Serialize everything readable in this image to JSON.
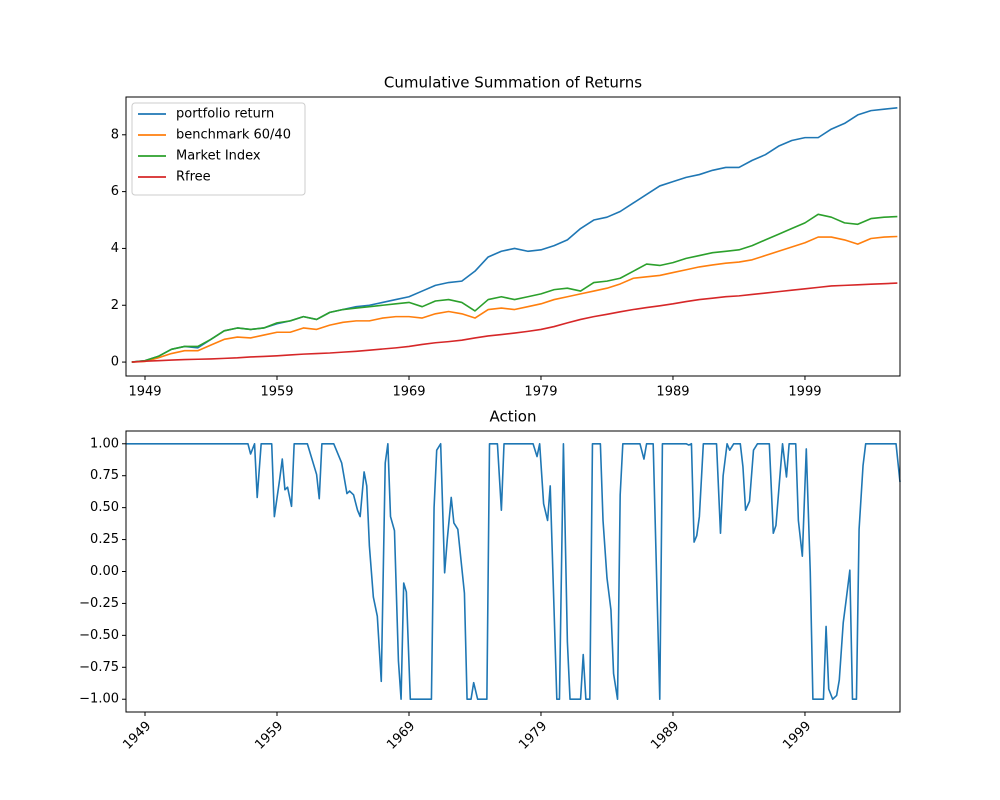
{
  "chart_data": [
    {
      "type": "line",
      "title": "Cumulative Summation of Returns",
      "x": [
        1948,
        1949,
        1950,
        1951,
        1952,
        1953,
        1954,
        1955,
        1956,
        1957,
        1958,
        1959,
        1960,
        1961,
        1962,
        1963,
        1964,
        1965,
        1966,
        1967,
        1968,
        1969,
        1970,
        1971,
        1972,
        1973,
        1974,
        1975,
        1976,
        1977,
        1978,
        1979,
        1980,
        1981,
        1982,
        1983,
        1984,
        1985,
        1986,
        1987,
        1988,
        1989,
        1990,
        1991,
        1992,
        1993,
        1994,
        1995,
        1996,
        1997,
        1998,
        1999,
        2000,
        2001,
        2002,
        2003,
        2004,
        2005,
        2006
      ],
      "series": [
        {
          "name": "portfolio return",
          "color": "#1f77b4",
          "values": [
            0,
            0.05,
            0.2,
            0.45,
            0.55,
            0.5,
            0.8,
            1.1,
            1.2,
            1.15,
            1.2,
            1.35,
            1.45,
            1.6,
            1.5,
            1.75,
            1.85,
            1.95,
            2.0,
            2.1,
            2.2,
            2.3,
            2.5,
            2.7,
            2.8,
            2.85,
            3.2,
            3.7,
            3.9,
            4.0,
            3.9,
            3.95,
            4.1,
            4.3,
            4.7,
            5.0,
            5.1,
            5.3,
            5.6,
            5.9,
            6.2,
            6.35,
            6.5,
            6.6,
            6.75,
            6.85,
            6.85,
            7.1,
            7.3,
            7.6,
            7.8,
            7.9,
            7.9,
            8.2,
            8.4,
            8.7,
            8.85,
            8.9,
            8.95
          ]
        },
        {
          "name": "benchmark 60/40",
          "color": "#ff7f0e",
          "values": [
            0,
            0.02,
            0.15,
            0.3,
            0.4,
            0.4,
            0.6,
            0.8,
            0.88,
            0.85,
            0.95,
            1.05,
            1.05,
            1.2,
            1.15,
            1.3,
            1.4,
            1.45,
            1.45,
            1.55,
            1.6,
            1.6,
            1.55,
            1.7,
            1.78,
            1.7,
            1.55,
            1.85,
            1.9,
            1.85,
            1.95,
            2.05,
            2.2,
            2.3,
            2.4,
            2.5,
            2.6,
            2.75,
            2.95,
            3.0,
            3.05,
            3.15,
            3.25,
            3.35,
            3.42,
            3.48,
            3.52,
            3.6,
            3.75,
            3.9,
            4.05,
            4.2,
            4.4,
            4.4,
            4.3,
            4.15,
            4.35,
            4.4,
            4.42
          ]
        },
        {
          "name": "Market Index",
          "color": "#2ca02c",
          "values": [
            0,
            0.05,
            0.2,
            0.45,
            0.55,
            0.55,
            0.8,
            1.1,
            1.2,
            1.15,
            1.2,
            1.38,
            1.45,
            1.6,
            1.5,
            1.75,
            1.85,
            1.9,
            1.95,
            2.0,
            2.05,
            2.1,
            1.95,
            2.15,
            2.2,
            2.1,
            1.8,
            2.2,
            2.3,
            2.2,
            2.3,
            2.4,
            2.55,
            2.6,
            2.5,
            2.8,
            2.85,
            2.95,
            3.2,
            3.45,
            3.4,
            3.5,
            3.65,
            3.75,
            3.85,
            3.9,
            3.95,
            4.1,
            4.3,
            4.5,
            4.7,
            4.9,
            5.2,
            5.1,
            4.9,
            4.85,
            5.05,
            5.1,
            5.12
          ]
        },
        {
          "name": "Rfree",
          "color": "#d62728",
          "values": [
            0,
            0.03,
            0.05,
            0.07,
            0.09,
            0.1,
            0.11,
            0.13,
            0.15,
            0.18,
            0.2,
            0.22,
            0.25,
            0.28,
            0.3,
            0.32,
            0.35,
            0.38,
            0.42,
            0.46,
            0.5,
            0.55,
            0.62,
            0.68,
            0.72,
            0.77,
            0.85,
            0.92,
            0.97,
            1.02,
            1.08,
            1.15,
            1.25,
            1.38,
            1.5,
            1.6,
            1.68,
            1.77,
            1.85,
            1.92,
            1.98,
            2.05,
            2.13,
            2.2,
            2.25,
            2.3,
            2.33,
            2.38,
            2.43,
            2.48,
            2.53,
            2.58,
            2.63,
            2.68,
            2.7,
            2.72,
            2.74,
            2.76,
            2.78
          ]
        }
      ],
      "xlim": [
        1947.56,
        2006.2
      ],
      "xticks": [
        1949,
        1959,
        1969,
        1979,
        1989,
        1999
      ],
      "ylim": [
        -0.49,
        9.33
      ],
      "yticks": [
        0,
        2,
        4,
        6,
        8
      ],
      "legend": "upper left"
    },
    {
      "type": "line",
      "title": "Action",
      "color": "#1f77b4",
      "xtick_rotation": 45,
      "x": [
        1947.6,
        1956.8,
        1957.0,
        1957.3,
        1957.5,
        1957.8,
        1958.6,
        1958.8,
        1959.2,
        1959.4,
        1959.6,
        1959.8,
        1960.1,
        1960.3,
        1961.3,
        1962.0,
        1962.2,
        1962.4,
        1963.3,
        1963.9,
        1964.3,
        1964.5,
        1964.8,
        1965.1,
        1965.3,
        1965.6,
        1965.8,
        1966.0,
        1966.3,
        1966.6,
        1966.9,
        1967.2,
        1967.4,
        1967.6,
        1967.9,
        1968.2,
        1968.4,
        1968.6,
        1968.8,
        1969.1,
        1970.7,
        1970.9,
        1971.1,
        1971.4,
        1971.7,
        1971.9,
        1972.2,
        1972.4,
        1972.7,
        1973.0,
        1973.2,
        1973.4,
        1973.7,
        1973.9,
        1974.2,
        1974.9,
        1975.1,
        1975.7,
        1976.0,
        1976.2,
        1978.4,
        1978.7,
        1978.9,
        1979.2,
        1979.5,
        1979.7,
        1979.9,
        1980.2,
        1980.4,
        1980.7,
        1981.0,
        1981.2,
        1982.0,
        1982.2,
        1982.4,
        1982.7,
        1982.9,
        1983.5,
        1983.7,
        1984.0,
        1984.3,
        1984.5,
        1984.8,
        1985.0,
        1985.2,
        1986.5,
        1986.8,
        1987.0,
        1987.5,
        1987.7,
        1988.0,
        1988.2,
        1990.0,
        1990.2,
        1990.4,
        1990.6,
        1990.8,
        1991.0,
        1991.3,
        1992.3,
        1992.6,
        1992.8,
        1993.1,
        1993.3,
        1993.6,
        1994.1,
        1994.3,
        1994.5,
        1994.8,
        1995.1,
        1995.4,
        1996.3,
        1996.6,
        1996.8,
        1997.3,
        1997.6,
        1997.8,
        1998.3,
        1998.5,
        1998.8,
        1999.1,
        1999.4,
        1999.6,
        2000.4,
        2000.6,
        2000.8,
        2001.1,
        2001.4,
        2001.6,
        2001.9,
        2002.1,
        2002.4,
        2002.6,
        2002.9,
        2003.1,
        2003.4,
        2003.6,
        2005.9,
        2006.2
      ],
      "values": [
        1,
        1,
        0.92,
        1,
        0.58,
        1,
        1,
        0.43,
        0.72,
        0.88,
        0.64,
        0.66,
        0.51,
        1,
        1,
        0.76,
        0.57,
        1,
        1,
        0.85,
        0.61,
        0.63,
        0.6,
        0.48,
        0.43,
        0.78,
        0.67,
        0.2,
        -0.2,
        -0.35,
        -0.86,
        0.85,
        1,
        0.43,
        0.32,
        -0.7,
        -1,
        -0.09,
        -0.16,
        -1,
        -1,
        0.5,
        0.95,
        1,
        -0.01,
        0.25,
        0.58,
        0.38,
        0.33,
        0.03,
        -0.17,
        -1,
        -1,
        -0.87,
        -1,
        -1,
        1,
        1,
        0.48,
        1,
        1,
        0.9,
        1,
        0.53,
        0.4,
        0.67,
        0,
        -1,
        -1,
        1,
        -0.55,
        -1,
        -1,
        -0.65,
        -1,
        -1,
        1,
        1,
        0.4,
        -0.05,
        -0.3,
        -0.8,
        -1,
        0.6,
        1,
        1,
        0.88,
        1,
        1,
        0.2,
        -1,
        1,
        1,
        0.99,
        1,
        0.23,
        0.28,
        0.43,
        1,
        1,
        0.3,
        0.75,
        1,
        0.95,
        1,
        1,
        0.82,
        0.48,
        0.55,
        0.95,
        1,
        1,
        0.3,
        0.36,
        1,
        0.74,
        1,
        1,
        0.4,
        0.12,
        0.96,
        0,
        -1,
        -1,
        -0.43,
        -0.92,
        -1,
        -0.97,
        -0.85,
        -0.4,
        -0.24,
        0.01,
        -1,
        -1,
        0.33,
        0.83,
        1,
        1,
        0.7
      ],
      "xlim": [
        1947.56,
        2006.2
      ],
      "xticks": [
        1949,
        1959,
        1969,
        1979,
        1989,
        1999
      ],
      "ylim": [
        -1.1,
        1.1
      ],
      "yticks": [
        {
          "value": -1,
          "label": "−1.00"
        },
        {
          "value": -0.75,
          "label": "−0.75"
        },
        {
          "value": -0.5,
          "label": "−0.50"
        },
        {
          "value": -0.25,
          "label": "−0.25"
        },
        {
          "value": 0,
          "label": "0.00"
        },
        {
          "value": 0.25,
          "label": "0.25"
        },
        {
          "value": 0.5,
          "label": "0.50"
        },
        {
          "value": 0.75,
          "label": "0.75"
        },
        {
          "value": 1,
          "label": "1.00"
        }
      ]
    }
  ]
}
